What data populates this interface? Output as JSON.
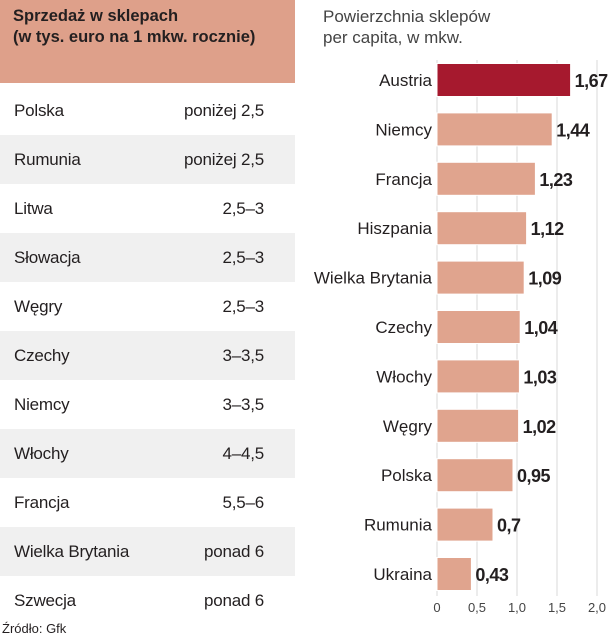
{
  "table": {
    "title": "Sprzedaż w sklepach\n(w tys. euro na 1 mkw. rocznie)",
    "rows": [
      {
        "country": "Polska",
        "value": "poniżej 2,5"
      },
      {
        "country": "Rumunia",
        "value": "poniżej 2,5"
      },
      {
        "country": "Litwa",
        "value": "2,5–3"
      },
      {
        "country": "Słowacja",
        "value": "2,5–3"
      },
      {
        "country": "Węgry",
        "value": "2,5–3"
      },
      {
        "country": "Czechy",
        "value": "3–3,5"
      },
      {
        "country": "Niemcy",
        "value": "3–3,5"
      },
      {
        "country": "Włochy",
        "value": "4–4,5"
      },
      {
        "country": "Francja",
        "value": "5,5–6"
      },
      {
        "country": "Wielka Brytania",
        "value": "ponad 6"
      },
      {
        "country": "Szwecja",
        "value": "ponad 6"
      }
    ]
  },
  "source": "Źródło: Gfk",
  "colors": {
    "header_bg": "#dea08a",
    "bar": "#e0a48e",
    "bar_highlight": "#a6192e",
    "row_alt": "#f0f0f0"
  },
  "chart_data": {
    "type": "bar",
    "orientation": "horizontal",
    "title": "Powierzchnia sklepów\nper capita, w mkw.",
    "categories": [
      "Austria",
      "Niemcy",
      "Francja",
      "Hiszpania",
      "Wielka Brytania",
      "Czechy",
      "Włochy",
      "Węgry",
      "Polska",
      "Rumunia",
      "Ukraina"
    ],
    "values": [
      1.67,
      1.44,
      1.23,
      1.12,
      1.09,
      1.04,
      1.03,
      1.02,
      0.95,
      0.7,
      0.43
    ],
    "value_labels": [
      "1,67",
      "1,44",
      "1,23",
      "1,12",
      "1,09",
      "1,04",
      "1,03",
      "1,02",
      "0,95",
      "0,7",
      "0,43"
    ],
    "highlight_index": 0,
    "xlim": [
      0,
      2.0
    ],
    "xticks": [
      0,
      0.5,
      1.0,
      1.5,
      2.0
    ],
    "xtick_labels": [
      "0",
      "0,5",
      "1,0",
      "1,5",
      "2,0"
    ],
    "grid": true,
    "xlabel": "",
    "ylabel": ""
  }
}
